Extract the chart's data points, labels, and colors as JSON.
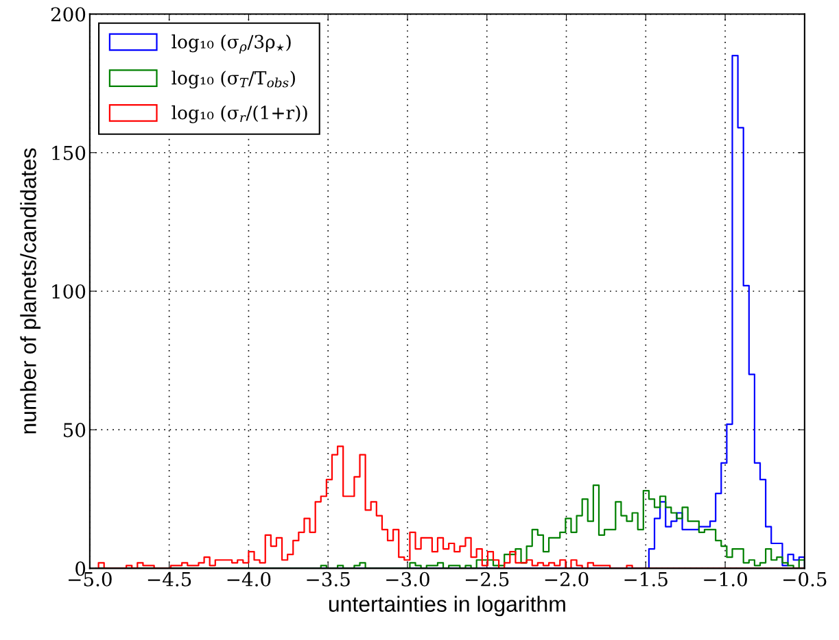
{
  "chart_data": {
    "type": "histogram",
    "xlabel": "untertainties in logarithm",
    "ylabel": "number of planets/candidates",
    "xlim": [
      -5.0,
      -0.5
    ],
    "ylim": [
      0,
      200
    ],
    "xticks": [
      {
        "value": -5.0,
        "label": "−5.0"
      },
      {
        "value": -4.5,
        "label": "−4.5"
      },
      {
        "value": -4.0,
        "label": "−4.0"
      },
      {
        "value": -3.5,
        "label": "−3.5"
      },
      {
        "value": -3.0,
        "label": "−3.0"
      },
      {
        "value": -2.5,
        "label": "−2.5"
      },
      {
        "value": -2.0,
        "label": "−2.0"
      },
      {
        "value": -1.5,
        "label": "−1.5"
      },
      {
        "value": -1.0,
        "label": "−1.0"
      },
      {
        "value": -0.5,
        "label": "−0.5"
      }
    ],
    "yticks": [
      0,
      50,
      100,
      150,
      200
    ],
    "grid": true,
    "legend": "top left",
    "bins": [
      -4.945,
      -4.91,
      -4.875,
      -4.84,
      -4.805,
      -4.77,
      -4.735,
      -4.7,
      -4.665,
      -4.63,
      -4.595,
      -4.56,
      -4.525,
      -4.49,
      -4.455,
      -4.42,
      -4.385,
      -4.35,
      -4.315,
      -4.28,
      -4.245,
      -4.21,
      -4.175,
      -4.14,
      -4.105,
      -4.07,
      -4.035,
      -4.0,
      -3.965,
      -3.93,
      -3.895,
      -3.86,
      -3.825,
      -3.79,
      -3.755,
      -3.72,
      -3.685,
      -3.65,
      -3.615,
      -3.58,
      -3.545,
      -3.51,
      -3.475,
      -3.44,
      -3.405,
      -3.37,
      -3.335,
      -3.3,
      -3.265,
      -3.23,
      -3.195,
      -3.16,
      -3.125,
      -3.09,
      -3.055,
      -3.02,
      -2.985,
      -2.95,
      -2.915,
      -2.88,
      -2.845,
      -2.81,
      -2.775,
      -2.74,
      -2.705,
      -2.67,
      -2.635,
      -2.6,
      -2.565,
      -2.53,
      -2.495,
      -2.46,
      -2.425,
      -2.39,
      -2.355,
      -2.32,
      -2.285,
      -2.25,
      -2.215,
      -2.18,
      -2.145,
      -2.11,
      -2.075,
      -2.04,
      -2.005,
      -1.97,
      -1.935,
      -1.9,
      -1.865,
      -1.83,
      -1.795,
      -1.76,
      -1.725,
      -1.69,
      -1.655,
      -1.62,
      -1.585,
      -1.55,
      -1.515,
      -1.48,
      -1.445,
      -1.41,
      -1.375,
      -1.34,
      -1.305,
      -1.27,
      -1.235,
      -1.2,
      -1.165,
      -1.13,
      -1.095,
      -1.06,
      -1.025,
      -0.99,
      -0.955,
      -0.92,
      -0.885,
      -0.85,
      -0.815,
      -0.78,
      -0.745,
      -0.71,
      -0.675,
      -0.64,
      -0.605,
      -0.57,
      -0.535,
      -0.5
    ],
    "series": [
      {
        "name": "log₁₀ (σ$_{ρ}$/3ρ$_{⋆}$)",
        "color": "#0000ff",
        "values": [
          0,
          0,
          0,
          0,
          0,
          0,
          0,
          0,
          0,
          0,
          0,
          0,
          0,
          0,
          0,
          0,
          0,
          0,
          0,
          0,
          0,
          0,
          0,
          0,
          0,
          0,
          0,
          0,
          0,
          0,
          0,
          0,
          0,
          0,
          0,
          0,
          0,
          0,
          0,
          0,
          0,
          0,
          0,
          0,
          0,
          0,
          0,
          0,
          0,
          0,
          0,
          0,
          0,
          0,
          0,
          0,
          0,
          0,
          0,
          0,
          0,
          0,
          0,
          0,
          0,
          0,
          0,
          0,
          0,
          0,
          0,
          0,
          0,
          0,
          0,
          0,
          0,
          0,
          0,
          0,
          0,
          0,
          0,
          0,
          0,
          0,
          0,
          0,
          0,
          0,
          0,
          0,
          0,
          0,
          0,
          0,
          0,
          0,
          0,
          7,
          18,
          24,
          15,
          17,
          20,
          14,
          14,
          14,
          15,
          15,
          17,
          27,
          38,
          52,
          185,
          159,
          102,
          70,
          38,
          32,
          15,
          9,
          9,
          1,
          5,
          3,
          4
        ]
      },
      {
        "name": "log₁₀ (σ$_{T}$/T$_{obs}$)",
        "color": "#008000",
        "values": [
          0,
          0,
          0,
          0,
          0,
          0,
          0,
          0,
          0,
          0,
          0,
          0,
          0,
          0,
          0,
          0,
          0,
          0,
          0,
          0,
          0,
          0,
          0,
          0,
          0,
          0,
          0,
          0,
          0,
          0,
          0,
          0,
          0,
          0,
          0,
          0,
          0,
          0,
          0,
          0,
          1,
          0,
          0,
          1,
          0,
          0,
          1,
          2,
          0,
          0,
          0,
          0,
          0,
          0,
          0,
          0,
          2,
          1,
          0,
          1,
          1,
          2,
          0,
          1,
          1,
          0,
          1,
          0,
          3,
          3,
          3,
          1,
          1,
          5,
          5,
          7,
          2,
          8,
          14,
          12,
          6,
          11,
          11,
          13,
          18,
          13,
          19,
          25,
          17,
          30,
          12,
          14,
          14,
          24,
          19,
          17,
          20,
          14,
          28,
          25,
          22,
          26,
          22,
          20,
          18,
          22,
          17,
          17,
          13,
          14,
          14,
          10,
          8,
          4,
          7,
          7,
          2,
          3,
          1,
          2,
          7,
          3,
          4,
          2,
          1,
          0,
          3
        ]
      },
      {
        "name": "log₁₀ (σ$_{r}$/(1+r))",
        "color": "#ff0000",
        "values": [
          2,
          0,
          0,
          0,
          0,
          1,
          0,
          2,
          1,
          1,
          0,
          0,
          0,
          1,
          1,
          2,
          1,
          1,
          2,
          4,
          1,
          3,
          3,
          3,
          2,
          3,
          2,
          6,
          3,
          2,
          12,
          8,
          11,
          3,
          5,
          10,
          13,
          18,
          13,
          24,
          26,
          32,
          41,
          44,
          26,
          26,
          33,
          41,
          21,
          24,
          19,
          14,
          10,
          14,
          4,
          3,
          13,
          7,
          11,
          11,
          6,
          11,
          7,
          9,
          6,
          8,
          11,
          4,
          7,
          1,
          6,
          3,
          0,
          2,
          6,
          2,
          2,
          3,
          1,
          2,
          1,
          2,
          1,
          3,
          0,
          3,
          1,
          0,
          2,
          1,
          1,
          1,
          0,
          0,
          0,
          1,
          0,
          0,
          0,
          0,
          0,
          0,
          0,
          0,
          0,
          0,
          0,
          0,
          0,
          0,
          0,
          0,
          0,
          0,
          0,
          0,
          0,
          0,
          0,
          0,
          0,
          0,
          0,
          0,
          0,
          0,
          0
        ]
      }
    ]
  }
}
